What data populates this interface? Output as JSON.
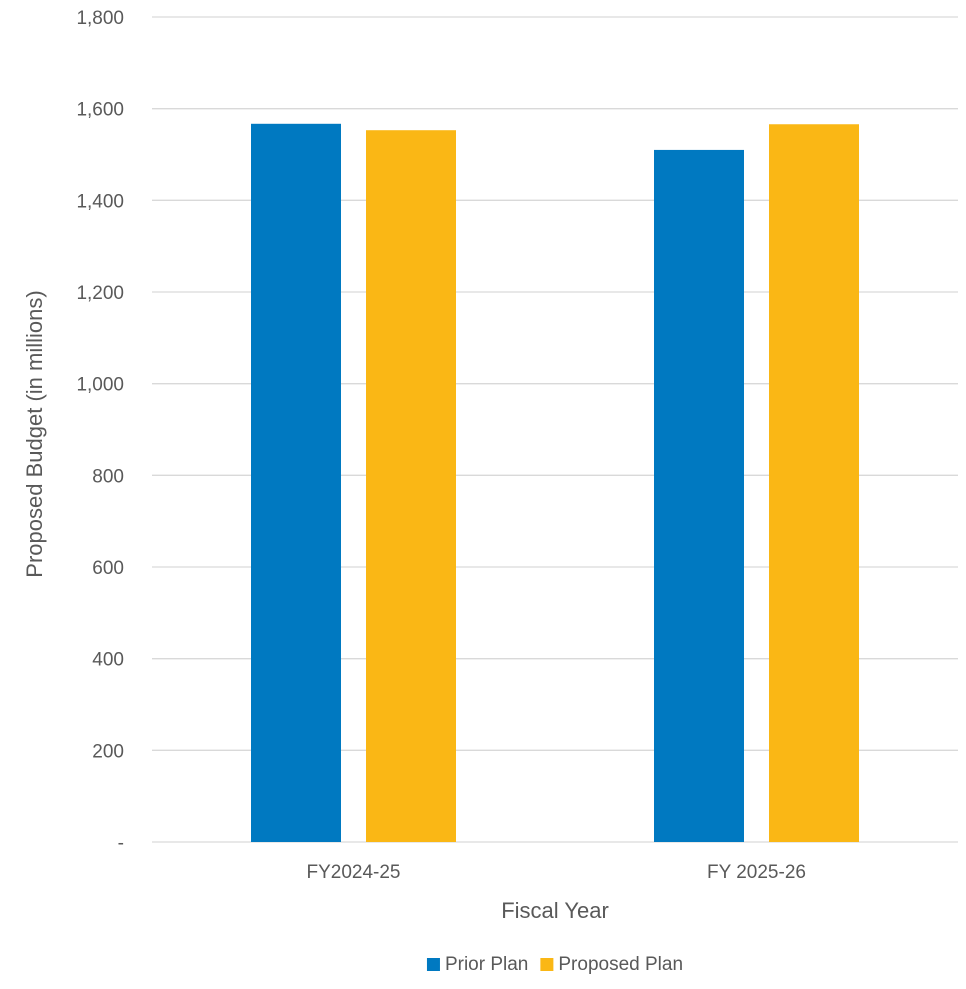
{
  "chart_data": {
    "type": "bar",
    "categories": [
      "FY2024-25",
      "FY 2025-26"
    ],
    "series": [
      {
        "name": "Prior Plan",
        "values": [
          1567,
          1510
        ],
        "color": "#0079C1"
      },
      {
        "name": "Proposed Plan",
        "values": [
          1553,
          1566
        ],
        "color": "#FAB715"
      }
    ],
    "xlabel": "Fiscal Year",
    "ylabel": "Proposed Budget (in millions)",
    "ylim": [
      0,
      1800
    ],
    "yticks": [
      0,
      200,
      400,
      600,
      800,
      1000,
      1200,
      1400,
      1600,
      1800
    ],
    "ytick_labels": [
      "-",
      "200",
      "400",
      "600",
      "800",
      "1,000",
      "1,200",
      "1,400",
      "1,600",
      "1,800"
    ],
    "grid": true,
    "legend_position": "bottom"
  }
}
